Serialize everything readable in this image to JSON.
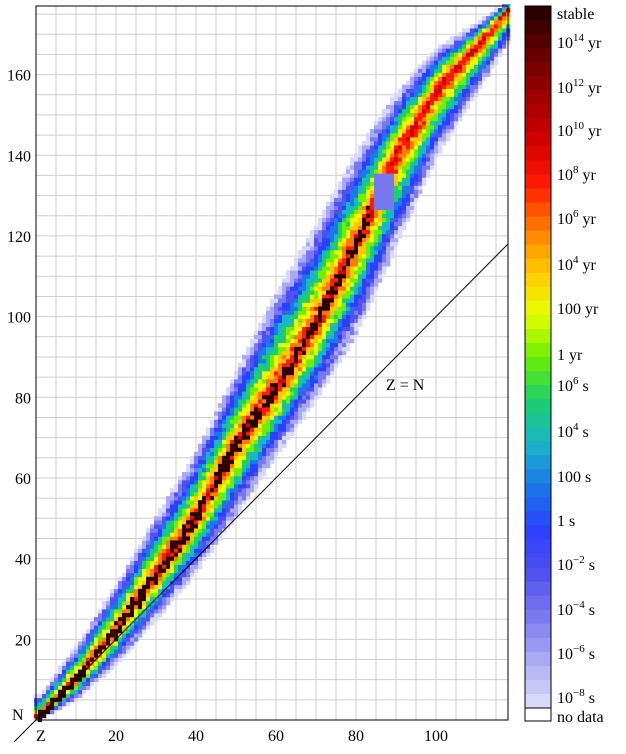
{
  "chart_data": {
    "type": "heatmap",
    "title": "",
    "xlabel": "Z",
    "ylabel": "N",
    "xlim": [
      0,
      118
    ],
    "ylim": [
      0,
      177
    ],
    "x_ticks": [
      20,
      40,
      60,
      80,
      100
    ],
    "y_ticks": [
      20,
      40,
      60,
      80,
      100,
      120,
      140,
      160
    ],
    "grid": true,
    "reference_line": {
      "label": "Z = N",
      "slope": 1
    },
    "colorbar": {
      "position": "right",
      "labels": [
        {
          "text": "stable",
          "sup": ""
        },
        {
          "text": "10",
          "sup": "14",
          "unit": "yr"
        },
        {
          "text": "10",
          "sup": "12",
          "unit": "yr"
        },
        {
          "text": "10",
          "sup": "10",
          "unit": "yr"
        },
        {
          "text": "10",
          "sup": "8",
          "unit": "yr"
        },
        {
          "text": "10",
          "sup": "6",
          "unit": "yr"
        },
        {
          "text": "10",
          "sup": "4",
          "unit": "yr"
        },
        {
          "text": "100 yr",
          "sup": ""
        },
        {
          "text": "1 yr",
          "sup": ""
        },
        {
          "text": "10",
          "sup": "6",
          "unit": "s"
        },
        {
          "text": "10",
          "sup": "4",
          "unit": "s"
        },
        {
          "text": "100 s",
          "sup": ""
        },
        {
          "text": "1 s",
          "sup": ""
        },
        {
          "text": "10",
          "sup": "−2",
          "unit": "s"
        },
        {
          "text": "10",
          "sup": "−4",
          "unit": "s"
        },
        {
          "text": "10",
          "sup": "−6",
          "unit": "s"
        },
        {
          "text": "10",
          "sup": "−8",
          "unit": "s"
        },
        {
          "text": "no data",
          "sup": ""
        }
      ],
      "colors": [
        "#2a0000",
        "#6a0000",
        "#a00000",
        "#d40000",
        "#ff1a00",
        "#ff7a00",
        "#ffc800",
        "#e8ff00",
        "#6cf000",
        "#1ccf6a",
        "#1ab5c8",
        "#1a78e8",
        "#2a40ff",
        "#5050f0",
        "#7878f0",
        "#a8a8f4",
        "#d8d8fa",
        "#ffffff"
      ]
    },
    "valley_of_stability": {
      "centerline_N_at_Z": [
        [
          1,
          1
        ],
        [
          10,
          10
        ],
        [
          20,
          22
        ],
        [
          30,
          36
        ],
        [
          40,
          50
        ],
        [
          50,
          68
        ],
        [
          60,
          82
        ],
        [
          70,
          98
        ],
        [
          80,
          118
        ],
        [
          90,
          140
        ],
        [
          100,
          156
        ],
        [
          118,
          176
        ]
      ],
      "upper_edge_N_at_Z": [
        [
          1,
          6
        ],
        [
          10,
          18
        ],
        [
          20,
          33
        ],
        [
          30,
          50
        ],
        [
          40,
          66
        ],
        [
          50,
          86
        ],
        [
          60,
          105
        ],
        [
          70,
          122
        ],
        [
          80,
          140
        ],
        [
          90,
          155
        ],
        [
          100,
          166
        ],
        [
          118,
          178
        ]
      ],
      "lower_edge_N_at_Z": [
        [
          1,
          0
        ],
        [
          10,
          5
        ],
        [
          20,
          14
        ],
        [
          30,
          25
        ],
        [
          40,
          37
        ],
        [
          50,
          51
        ],
        [
          60,
          66
        ],
        [
          70,
          80
        ],
        [
          80,
          96
        ],
        [
          90,
          118
        ],
        [
          100,
          140
        ],
        [
          118,
          168
        ]
      ]
    }
  }
}
